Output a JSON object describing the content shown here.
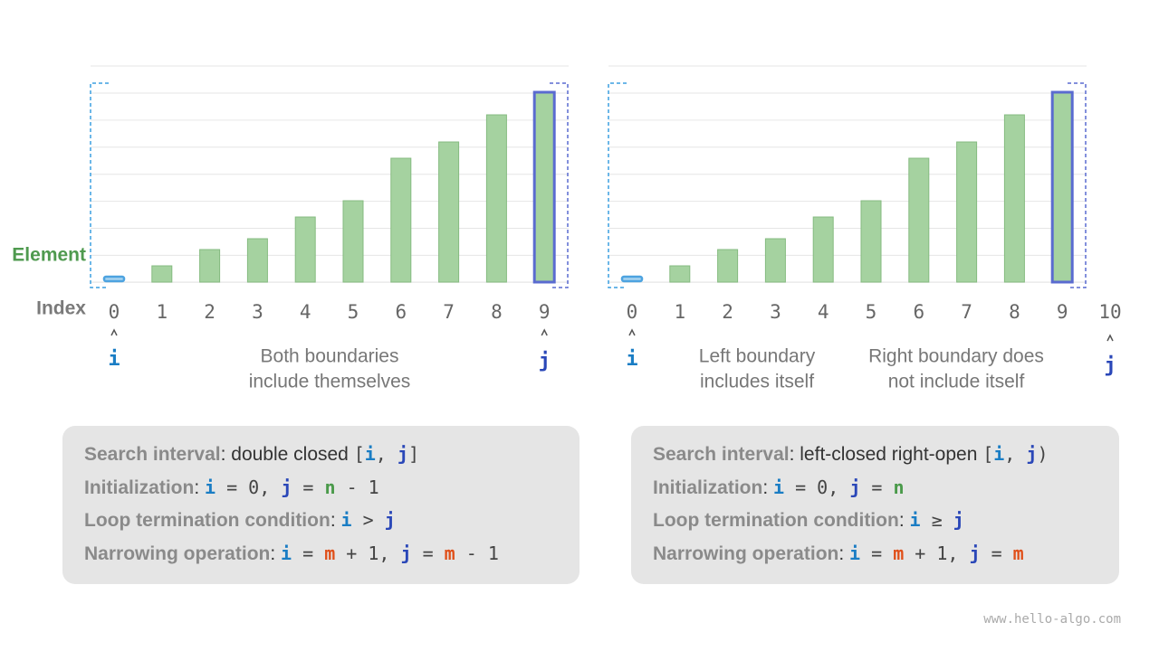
{
  "labels": {
    "element": "Element",
    "index": "Index"
  },
  "panels": [
    {
      "indices": [
        0,
        1,
        2,
        3,
        4,
        5,
        6,
        7,
        8,
        9
      ],
      "pointers": {
        "i": "i",
        "j": "j"
      },
      "captions": [
        [
          "Both boundaries",
          "include themselves"
        ]
      ]
    },
    {
      "indices": [
        0,
        1,
        2,
        3,
        4,
        5,
        6,
        7,
        8,
        9,
        10
      ],
      "pointers": {
        "i": "i",
        "j": "j"
      },
      "captions": [
        [
          "Left boundary",
          "includes itself"
        ],
        [
          "Right boundary does",
          "not include itself"
        ]
      ]
    }
  ],
  "boxes": [
    {
      "lines": [
        [
          "Search interval",
          ": double closed ",
          "[",
          "i",
          ", ",
          "j",
          "]"
        ],
        [
          "Initialization",
          ": ",
          "i",
          " = 0, ",
          "j",
          " = ",
          "n",
          " - 1"
        ],
        [
          "Loop termination condition",
          ": ",
          "i",
          " > ",
          "j"
        ],
        [
          "Narrowing operation",
          ": ",
          "i",
          " = ",
          "m",
          " + 1, ",
          "j",
          " = ",
          "m",
          " - 1"
        ]
      ]
    },
    {
      "lines": [
        [
          "Search interval",
          ": left-closed right-open ",
          "[",
          "i",
          ", ",
          "j",
          ")"
        ],
        [
          "Initialization",
          ": ",
          "i",
          " = 0, ",
          "j",
          " = ",
          "n"
        ],
        [
          "Loop termination condition",
          ": ",
          "i",
          " ≥ ",
          "j"
        ],
        [
          "Narrowing operation",
          ": ",
          "i",
          " = ",
          "m",
          " + 1, ",
          "j",
          " = ",
          "m"
        ]
      ]
    }
  ],
  "footer": "www.hello-algo.com"
}
